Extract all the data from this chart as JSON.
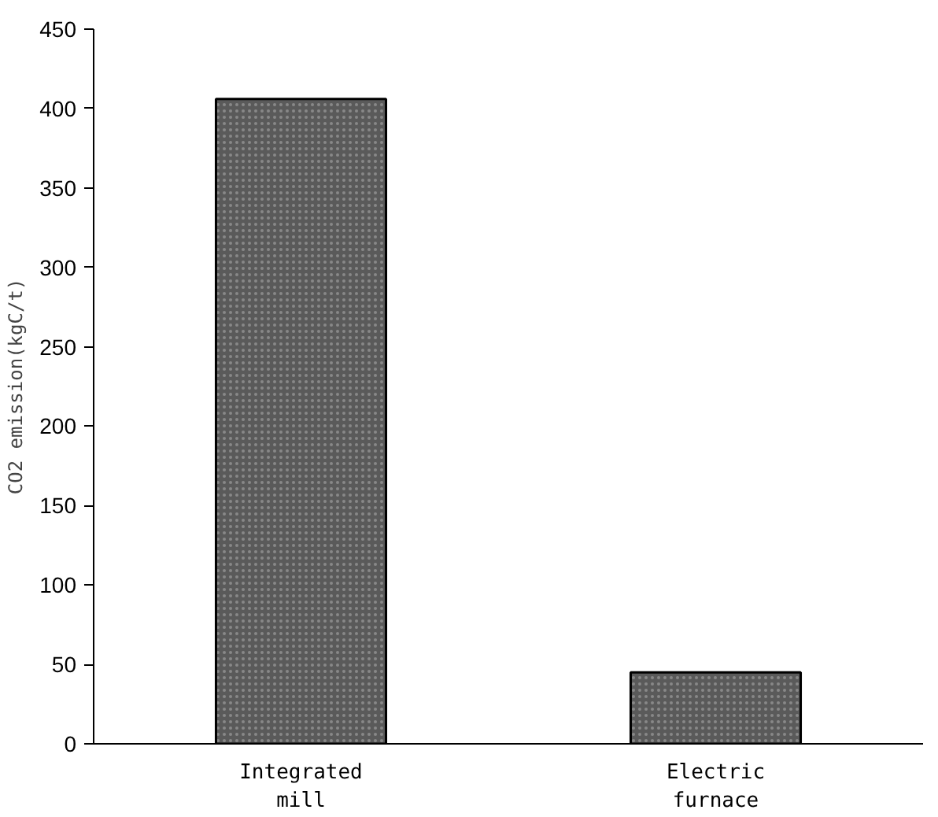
{
  "chart_data": {
    "type": "bar",
    "ylabel": "CO2 emission(kgC/t)",
    "categories": [
      "Integrated mill",
      "Electric furnace"
    ],
    "values": [
      406,
      45
    ],
    "color": "#5a5a5a",
    "ylim": [
      0,
      450
    ],
    "yticks": [
      0,
      50,
      100,
      150,
      200,
      250,
      300,
      350,
      400,
      450
    ],
    "grid": false
  }
}
